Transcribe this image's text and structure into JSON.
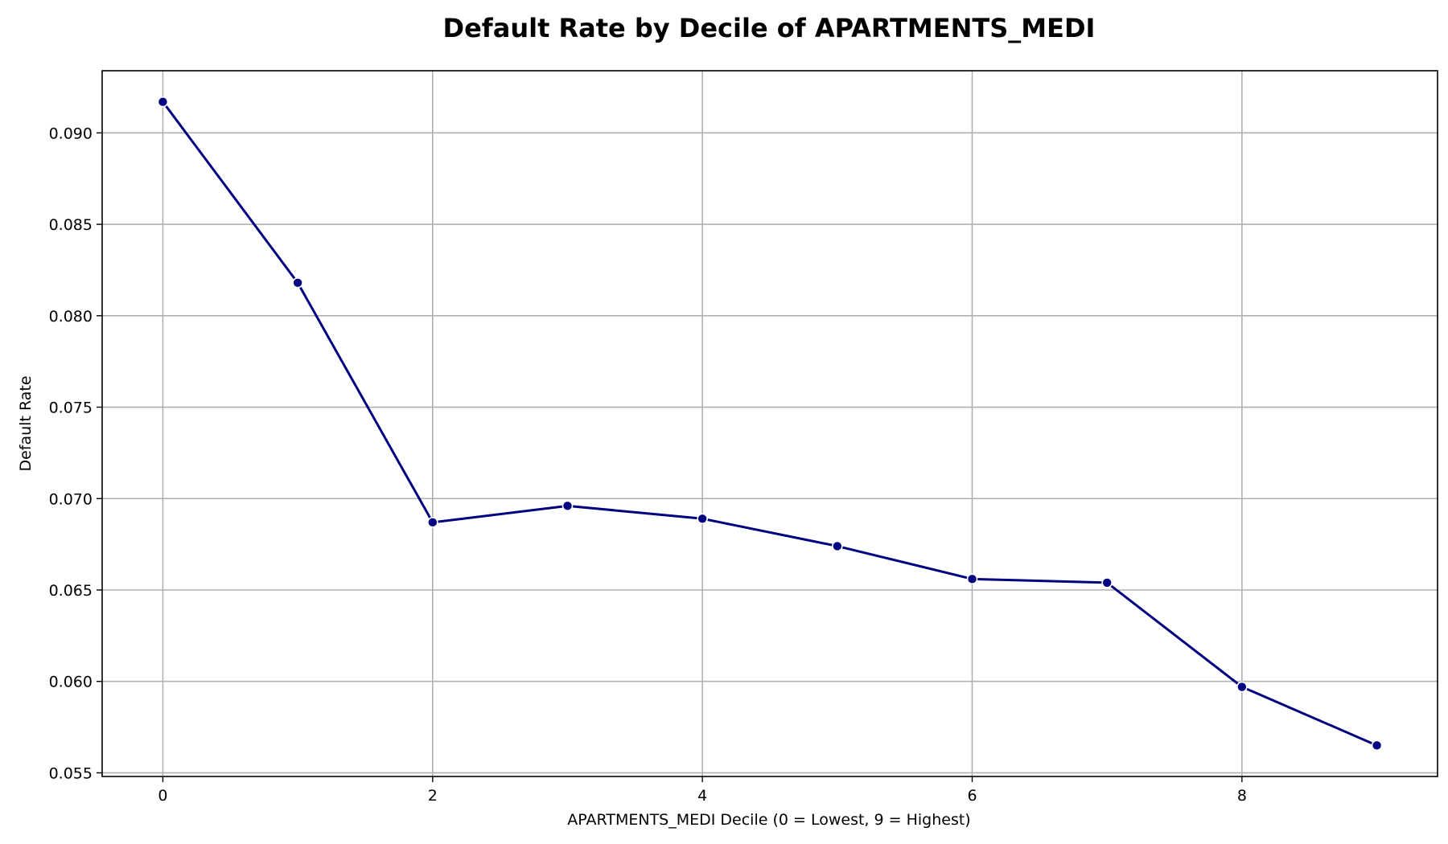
{
  "chart_data": {
    "type": "line",
    "title": "Default Rate by Decile of APARTMENTS_MEDI",
    "xlabel": "APARTMENTS_MEDI Decile (0 = Lowest, 9 = Highest)",
    "ylabel": "Default Rate",
    "x": [
      0,
      1,
      2,
      3,
      4,
      5,
      6,
      7,
      8,
      9
    ],
    "series": [
      {
        "values": [
          0.0917,
          0.0818,
          0.0687,
          0.0696,
          0.0689,
          0.0674,
          0.0656,
          0.0654,
          0.0597,
          0.0565
        ],
        "color": "#000080"
      }
    ],
    "xlim": [
      -0.45,
      9.45
    ],
    "ylim": [
      0.0548,
      0.0934
    ],
    "x_ticks": [
      0,
      2,
      4,
      6,
      8
    ],
    "x_tick_labels": [
      "0",
      "2",
      "4",
      "6",
      "8"
    ],
    "y_ticks": [
      0.055,
      0.06,
      0.065,
      0.07,
      0.075,
      0.08,
      0.085,
      0.09
    ],
    "y_tick_labels": [
      "0.055",
      "0.060",
      "0.065",
      "0.070",
      "0.075",
      "0.080",
      "0.085",
      "0.090"
    ],
    "grid": true,
    "markers": true
  }
}
